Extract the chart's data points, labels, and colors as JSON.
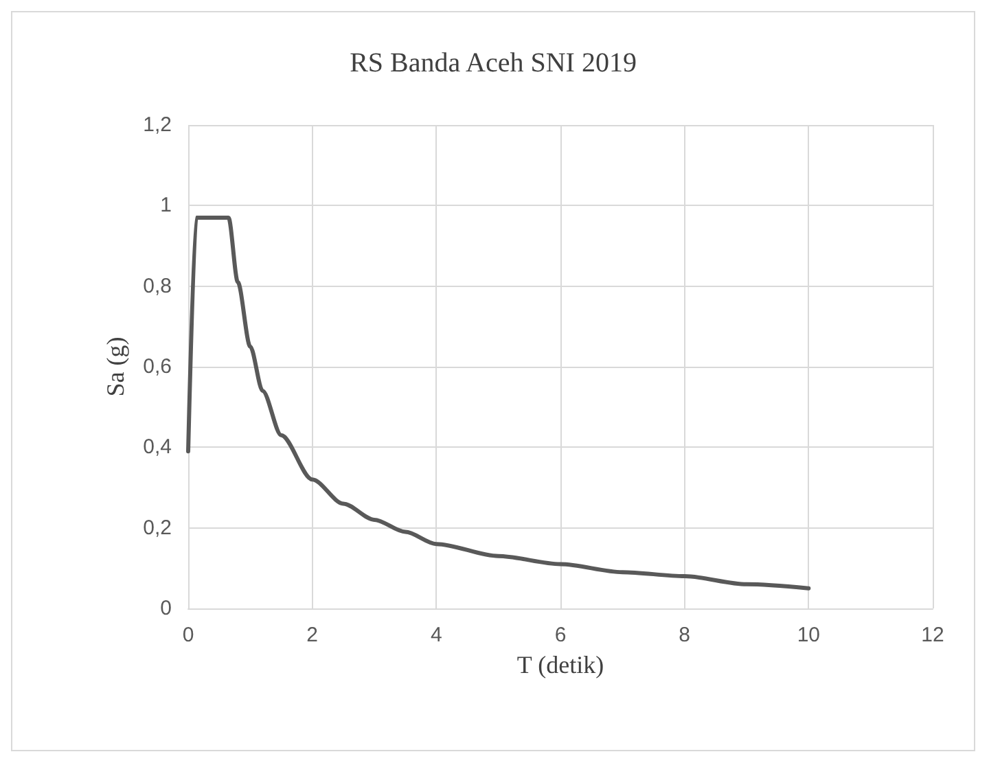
{
  "chart_data": {
    "type": "line",
    "title": "RS Banda Aceh SNI 2019",
    "xlabel": "T (detik)",
    "ylabel": "Sa (g)",
    "x": [
      0,
      0.13,
      0.65,
      0.8,
      1,
      1.2,
      1.5,
      2,
      2.5,
      3,
      3.5,
      4,
      5,
      6,
      7,
      8,
      9,
      10
    ],
    "series": [
      {
        "color": "#595959",
        "values": [
          0.39,
          0.97,
          0.97,
          0.81,
          0.65,
          0.54,
          0.43,
          0.32,
          0.26,
          0.22,
          0.19,
          0.16,
          0.13,
          0.11,
          0.09,
          0.08,
          0.06,
          0.05
        ]
      }
    ],
    "xlim": [
      0,
      12
    ],
    "xticks": [
      0,
      2,
      4,
      6,
      8,
      10,
      12
    ],
    "ylim": [
      0,
      1.2
    ],
    "yticks": [
      {
        "value": 0,
        "label": "0"
      },
      {
        "value": 0.2,
        "label": "0,2"
      },
      {
        "value": 0.4,
        "label": "0,4"
      },
      {
        "value": 0.6,
        "label": "0,6"
      },
      {
        "value": 0.8,
        "label": "0,8"
      },
      {
        "value": 1,
        "label": "1"
      },
      {
        "value": 1.2,
        "label": "1,2"
      }
    ],
    "grid": true,
    "marker": "none",
    "line_style": "solid"
  }
}
